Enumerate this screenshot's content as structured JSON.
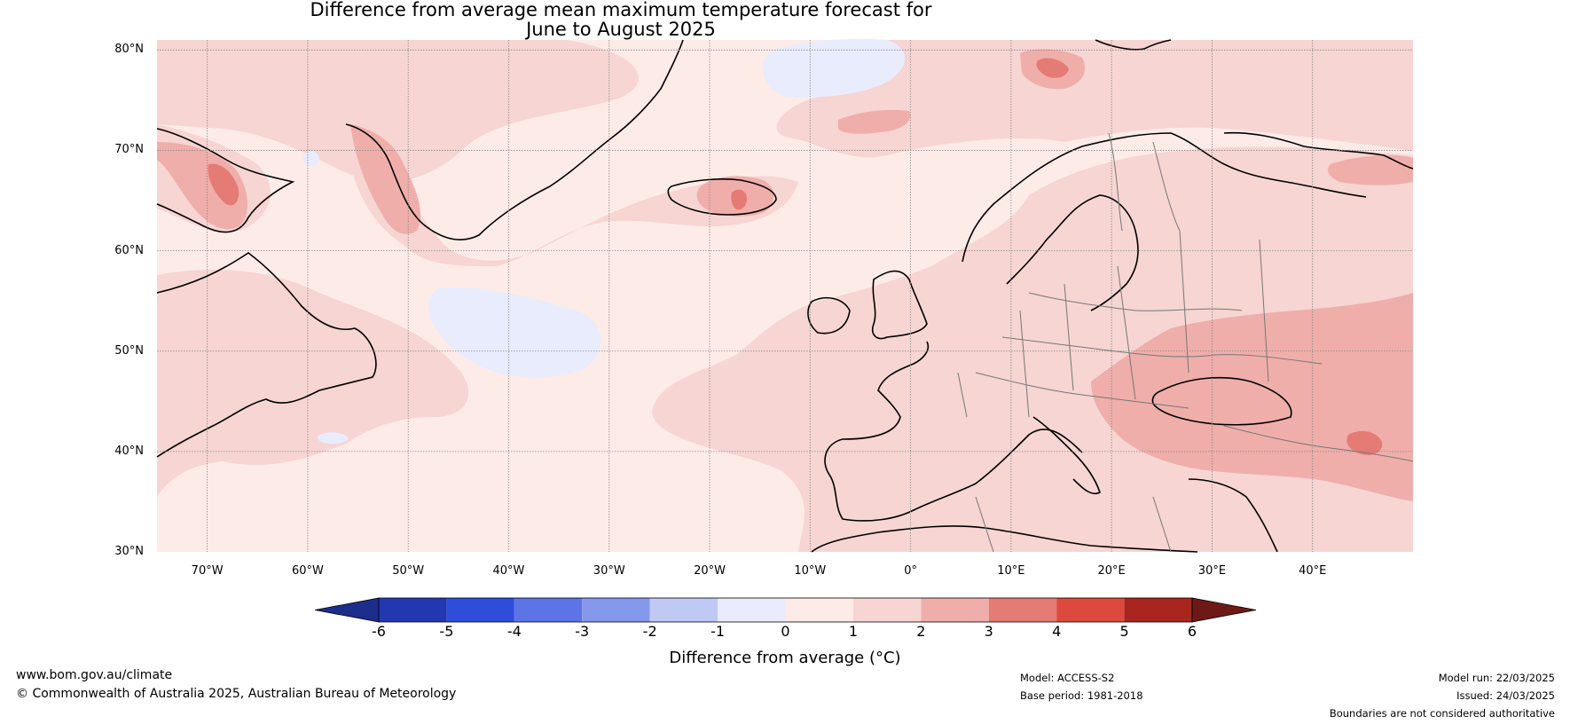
{
  "title_line1": "Difference from average mean maximum temperature forecast for",
  "title_line2": "June to August 2025",
  "lat_labels": [
    "80°N",
    "70°N",
    "60°N",
    "50°N",
    "40°N",
    "30°N"
  ],
  "lon_labels": [
    "70°W",
    "60°W",
    "50°W",
    "40°W",
    "30°W",
    "20°W",
    "10°W",
    "0°",
    "10°E",
    "20°E",
    "30°E",
    "40°E"
  ],
  "colorbar": {
    "title": "Difference from average (°C)",
    "ticks": [
      "-6",
      "-5",
      "-4",
      "-3",
      "-2",
      "-1",
      "0",
      "1",
      "2",
      "3",
      "4",
      "5",
      "6"
    ],
    "colors": [
      "#1c2d8c",
      "#2338b0",
      "#2f4ddb",
      "#5c74e6",
      "#8598ec",
      "#bfc9f4",
      "#e8ecfc",
      "#fdebe8",
      "#f6d5d2",
      "#efaeaa",
      "#e57b75",
      "#dc4a3e",
      "#a9261f",
      "#6e1916"
    ]
  },
  "footer": {
    "website": "www.bom.gov.au/climate",
    "copyright": "© Commonwealth of Australia 2025, Australian Bureau of Meteorology",
    "model": "Model: ACCESS-S2",
    "base_period": "Base period: 1981-2018",
    "model_run": "Model run: 22/03/2025",
    "issued": "Issued: 24/03/2025",
    "disclaimer": "Boundaries are not considered authoritative"
  }
}
